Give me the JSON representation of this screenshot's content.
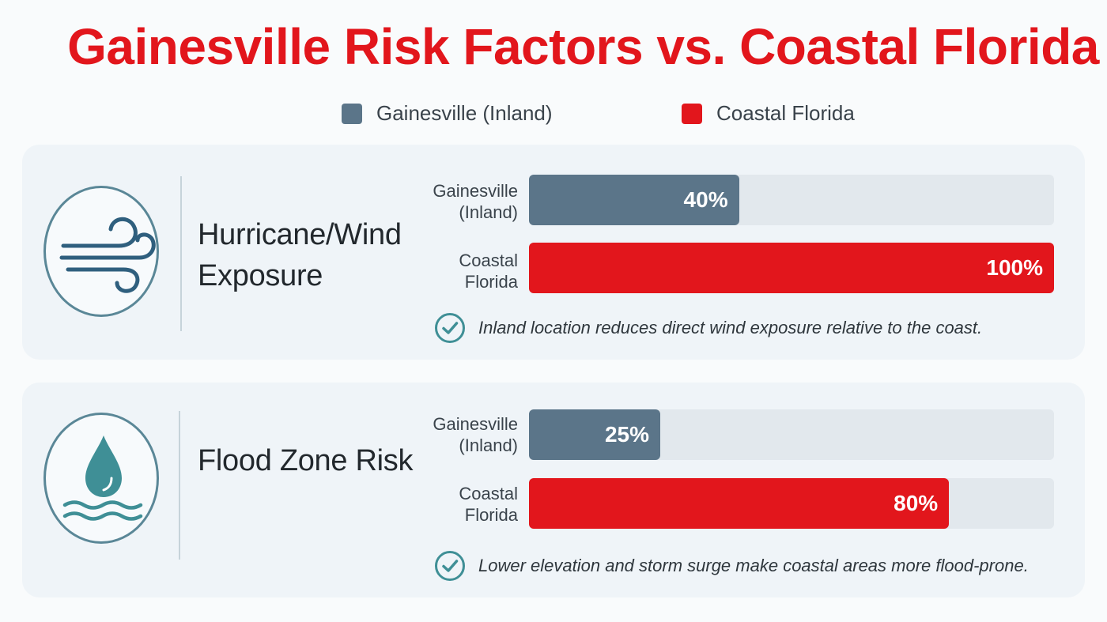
{
  "title": "Gainesville Risk Factors vs. Coastal Florida",
  "legend": [
    {
      "label": "Gainesville (Inland)",
      "color": "#5b7589"
    },
    {
      "label": "Coastal Florida",
      "color": "#e2161c"
    }
  ],
  "colors": {
    "inland": "#5b7589",
    "coastal": "#e2161c",
    "accent_teal": "#3f8f96",
    "title": "#e2161c"
  },
  "cards": [
    {
      "heading": "Hurricane/Wind Exposure",
      "icon": "wind-icon",
      "rows": [
        {
          "label": "Gainesville\n(Inland)",
          "value": 40,
          "value_label": "40%"
        },
        {
          "label": "Coastal\nFlorida",
          "value": 100,
          "value_label": "100%"
        }
      ],
      "note": "Inland location reduces direct wind exposure relative to the coast.",
      "note_icon": "check-circle-icon"
    },
    {
      "heading": "Flood Zone Risk",
      "icon": "water-drop-icon",
      "rows": [
        {
          "label": "Gainesville\n(Inland)",
          "value": 25,
          "value_label": "25%"
        },
        {
          "label": "Coastal\nFlorida",
          "value": 80,
          "value_label": "80%"
        }
      ],
      "note": "Lower elevation and storm surge make coastal areas more flood-prone.",
      "note_icon": "check-circle-icon"
    }
  ],
  "chart_data": [
    {
      "type": "bar",
      "orientation": "horizontal",
      "title": "Hurricane/Wind Exposure",
      "categories": [
        "Gainesville (Inland)",
        "Coastal Florida"
      ],
      "values": [
        40,
        100
      ],
      "unit": "%",
      "xlim": [
        0,
        100
      ]
    },
    {
      "type": "bar",
      "orientation": "horizontal",
      "title": "Flood Zone Risk",
      "categories": [
        "Gainesville (Inland)",
        "Coastal Florida"
      ],
      "values": [
        25,
        80
      ],
      "unit": "%",
      "xlim": [
        0,
        100
      ]
    }
  ]
}
